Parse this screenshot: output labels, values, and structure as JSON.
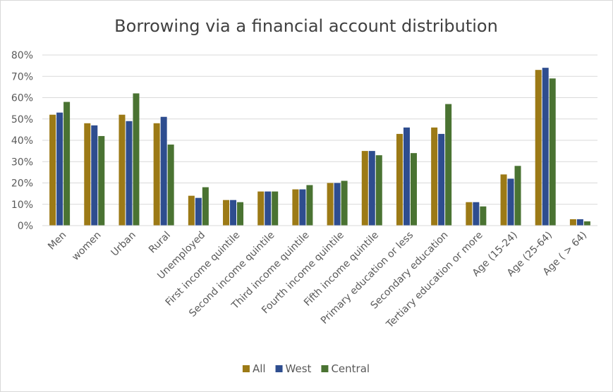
{
  "chart_data": {
    "type": "bar",
    "title": "Borrowing via a financial account distribution",
    "xlabel": "",
    "ylabel": "",
    "ylim": [
      0,
      80
    ],
    "yticks": [
      "0%",
      "10%",
      "20%",
      "30%",
      "40%",
      "50%",
      "60%",
      "70%",
      "80%"
    ],
    "grid": true,
    "legend_position": "bottom",
    "categories": [
      "Men",
      "women",
      "Urban",
      "Rural",
      "Unemployed",
      "First income quintile",
      "Second income quintile",
      "Third income quintile",
      "Fourth income quintile",
      "Fifth income quintile",
      "Primary education or less",
      "Secondary education",
      "Tertiary education or more",
      "Age (15-24)",
      "Age (25-64)",
      "Age ( > 64)"
    ],
    "series": [
      {
        "name": "All",
        "color": "#9c7a16",
        "values": [
          52,
          48,
          52,
          48,
          14,
          12,
          16,
          17,
          20,
          35,
          43,
          46,
          11,
          24,
          73,
          3
        ]
      },
      {
        "name": "West",
        "color": "#2e4d8f",
        "values": [
          53,
          47,
          49,
          51,
          13,
          12,
          16,
          17,
          20,
          35,
          46,
          43,
          11,
          22,
          74,
          3
        ]
      },
      {
        "name": "Central",
        "color": "#4a7332",
        "values": [
          58,
          42,
          62,
          38,
          18,
          11,
          16,
          19,
          21,
          33,
          34,
          57,
          9,
          28,
          69,
          2
        ]
      }
    ]
  }
}
